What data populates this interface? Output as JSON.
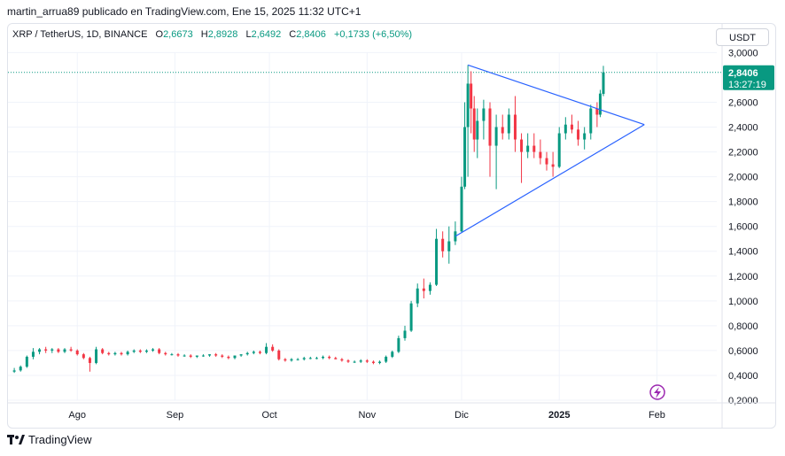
{
  "header": {
    "published_text": "martin_arrua89 publicado en TradingView.com, Ene 15, 2025 11:32 UTC+1"
  },
  "legend": {
    "symbol": "XRP / TetherUS, 1D, BINANCE",
    "o_label": "O",
    "o_value": "2,6673",
    "h_label": "H",
    "h_value": "2,8928",
    "l_label": "L",
    "l_value": "2,6492",
    "c_label": "C",
    "c_value": "2,8406",
    "change": "+0,1733 (+6,50%)"
  },
  "currency_button": "USDT",
  "price_label": {
    "price": "2,8406",
    "countdown": "13:27:19"
  },
  "footer": {
    "brand": "TradingView"
  },
  "colors": {
    "up": "#089981",
    "down": "#f23645",
    "pattern": "#2962ff",
    "grid": "#f0f3fa",
    "lightning": "#9c27b0"
  },
  "chart_data": {
    "type": "candlestick",
    "symbol": "XRP / TetherUS",
    "interval": "1D",
    "exchange": "BINANCE",
    "y_ticks": [
      "0,2000",
      "0,4000",
      "0,6000",
      "0,8000",
      "1,0000",
      "1,2000",
      "1,4000",
      "1,6000",
      "1,8000",
      "2,0000",
      "2,2000",
      "2,4000",
      "2,6000",
      "3,0000"
    ],
    "x_ticks": [
      "Ago",
      "Sep",
      "Oct",
      "Nov",
      "Dic",
      "2025",
      "Feb"
    ],
    "ylim": [
      0.2,
      3.0
    ],
    "xlim": [
      "2024-07-10",
      "2025-02-20"
    ],
    "last_price": 2.8406,
    "candles": [
      {
        "date": "2024-07-12",
        "o": 0.43,
        "h": 0.46,
        "l": 0.42,
        "c": 0.44
      },
      {
        "date": "2024-07-14",
        "o": 0.44,
        "h": 0.48,
        "l": 0.43,
        "c": 0.47
      },
      {
        "date": "2024-07-16",
        "o": 0.47,
        "h": 0.56,
        "l": 0.46,
        "c": 0.55
      },
      {
        "date": "2024-07-18",
        "o": 0.55,
        "h": 0.62,
        "l": 0.53,
        "c": 0.59
      },
      {
        "date": "2024-07-20",
        "o": 0.59,
        "h": 0.62,
        "l": 0.57,
        "c": 0.61
      },
      {
        "date": "2024-07-22",
        "o": 0.61,
        "h": 0.63,
        "l": 0.58,
        "c": 0.6
      },
      {
        "date": "2024-07-24",
        "o": 0.6,
        "h": 0.62,
        "l": 0.58,
        "c": 0.61
      },
      {
        "date": "2024-07-26",
        "o": 0.61,
        "h": 0.62,
        "l": 0.58,
        "c": 0.59
      },
      {
        "date": "2024-07-28",
        "o": 0.59,
        "h": 0.62,
        "l": 0.58,
        "c": 0.61
      },
      {
        "date": "2024-07-30",
        "o": 0.61,
        "h": 0.63,
        "l": 0.59,
        "c": 0.6
      },
      {
        "date": "2024-08-01",
        "o": 0.6,
        "h": 0.61,
        "l": 0.56,
        "c": 0.57
      },
      {
        "date": "2024-08-03",
        "o": 0.57,
        "h": 0.58,
        "l": 0.53,
        "c": 0.54
      },
      {
        "date": "2024-08-05",
        "o": 0.54,
        "h": 0.55,
        "l": 0.43,
        "c": 0.5
      },
      {
        "date": "2024-08-07",
        "o": 0.5,
        "h": 0.63,
        "l": 0.49,
        "c": 0.61
      },
      {
        "date": "2024-08-09",
        "o": 0.61,
        "h": 0.62,
        "l": 0.57,
        "c": 0.58
      },
      {
        "date": "2024-08-11",
        "o": 0.58,
        "h": 0.59,
        "l": 0.56,
        "c": 0.57
      },
      {
        "date": "2024-08-13",
        "o": 0.57,
        "h": 0.59,
        "l": 0.56,
        "c": 0.58
      },
      {
        "date": "2024-08-15",
        "o": 0.58,
        "h": 0.59,
        "l": 0.56,
        "c": 0.57
      },
      {
        "date": "2024-08-17",
        "o": 0.57,
        "h": 0.6,
        "l": 0.56,
        "c": 0.59
      },
      {
        "date": "2024-08-19",
        "o": 0.59,
        "h": 0.61,
        "l": 0.58,
        "c": 0.6
      },
      {
        "date": "2024-08-21",
        "o": 0.6,
        "h": 0.61,
        "l": 0.58,
        "c": 0.59
      },
      {
        "date": "2024-08-23",
        "o": 0.59,
        "h": 0.61,
        "l": 0.58,
        "c": 0.6
      },
      {
        "date": "2024-08-25",
        "o": 0.6,
        "h": 0.62,
        "l": 0.59,
        "c": 0.61
      },
      {
        "date": "2024-08-27",
        "o": 0.61,
        "h": 0.62,
        "l": 0.57,
        "c": 0.58
      },
      {
        "date": "2024-08-29",
        "o": 0.58,
        "h": 0.59,
        "l": 0.56,
        "c": 0.57
      },
      {
        "date": "2024-08-31",
        "o": 0.57,
        "h": 0.58,
        "l": 0.56,
        "c": 0.57
      },
      {
        "date": "2024-09-02",
        "o": 0.57,
        "h": 0.58,
        "l": 0.55,
        "c": 0.56
      },
      {
        "date": "2024-09-04",
        "o": 0.56,
        "h": 0.57,
        "l": 0.55,
        "c": 0.56
      },
      {
        "date": "2024-09-06",
        "o": 0.56,
        "h": 0.57,
        "l": 0.54,
        "c": 0.55
      },
      {
        "date": "2024-09-08",
        "o": 0.55,
        "h": 0.56,
        "l": 0.54,
        "c": 0.56
      },
      {
        "date": "2024-09-10",
        "o": 0.56,
        "h": 0.57,
        "l": 0.55,
        "c": 0.56
      },
      {
        "date": "2024-09-12",
        "o": 0.56,
        "h": 0.57,
        "l": 0.55,
        "c": 0.57
      },
      {
        "date": "2024-09-14",
        "o": 0.57,
        "h": 0.58,
        "l": 0.55,
        "c": 0.56
      },
      {
        "date": "2024-09-16",
        "o": 0.56,
        "h": 0.57,
        "l": 0.54,
        "c": 0.55
      },
      {
        "date": "2024-09-18",
        "o": 0.55,
        "h": 0.56,
        "l": 0.53,
        "c": 0.54
      },
      {
        "date": "2024-09-20",
        "o": 0.54,
        "h": 0.56,
        "l": 0.53,
        "c": 0.56
      },
      {
        "date": "2024-09-22",
        "o": 0.56,
        "h": 0.57,
        "l": 0.55,
        "c": 0.57
      },
      {
        "date": "2024-09-24",
        "o": 0.57,
        "h": 0.59,
        "l": 0.56,
        "c": 0.58
      },
      {
        "date": "2024-09-26",
        "o": 0.58,
        "h": 0.6,
        "l": 0.57,
        "c": 0.59
      },
      {
        "date": "2024-09-28",
        "o": 0.59,
        "h": 0.6,
        "l": 0.57,
        "c": 0.58
      },
      {
        "date": "2024-09-30",
        "o": 0.58,
        "h": 0.66,
        "l": 0.57,
        "c": 0.63
      },
      {
        "date": "2024-10-02",
        "o": 0.63,
        "h": 0.65,
        "l": 0.59,
        "c": 0.6
      },
      {
        "date": "2024-10-04",
        "o": 0.6,
        "h": 0.61,
        "l": 0.52,
        "c": 0.53
      },
      {
        "date": "2024-10-06",
        "o": 0.53,
        "h": 0.54,
        "l": 0.51,
        "c": 0.52
      },
      {
        "date": "2024-10-08",
        "o": 0.52,
        "h": 0.54,
        "l": 0.51,
        "c": 0.53
      },
      {
        "date": "2024-10-10",
        "o": 0.53,
        "h": 0.54,
        "l": 0.52,
        "c": 0.53
      },
      {
        "date": "2024-10-12",
        "o": 0.53,
        "h": 0.55,
        "l": 0.52,
        "c": 0.54
      },
      {
        "date": "2024-10-14",
        "o": 0.54,
        "h": 0.55,
        "l": 0.53,
        "c": 0.54
      },
      {
        "date": "2024-10-16",
        "o": 0.54,
        "h": 0.55,
        "l": 0.53,
        "c": 0.54
      },
      {
        "date": "2024-10-18",
        "o": 0.54,
        "h": 0.56,
        "l": 0.53,
        "c": 0.55
      },
      {
        "date": "2024-10-20",
        "o": 0.55,
        "h": 0.56,
        "l": 0.53,
        "c": 0.54
      },
      {
        "date": "2024-10-22",
        "o": 0.54,
        "h": 0.55,
        "l": 0.53,
        "c": 0.53
      },
      {
        "date": "2024-10-24",
        "o": 0.53,
        "h": 0.54,
        "l": 0.51,
        "c": 0.52
      },
      {
        "date": "2024-10-26",
        "o": 0.52,
        "h": 0.53,
        "l": 0.5,
        "c": 0.51
      },
      {
        "date": "2024-10-28",
        "o": 0.51,
        "h": 0.52,
        "l": 0.5,
        "c": 0.51
      },
      {
        "date": "2024-10-30",
        "o": 0.51,
        "h": 0.53,
        "l": 0.5,
        "c": 0.52
      },
      {
        "date": "2024-11-01",
        "o": 0.52,
        "h": 0.53,
        "l": 0.5,
        "c": 0.51
      },
      {
        "date": "2024-11-03",
        "o": 0.51,
        "h": 0.52,
        "l": 0.49,
        "c": 0.5
      },
      {
        "date": "2024-11-05",
        "o": 0.5,
        "h": 0.52,
        "l": 0.49,
        "c": 0.51
      },
      {
        "date": "2024-11-07",
        "o": 0.51,
        "h": 0.56,
        "l": 0.5,
        "c": 0.55
      },
      {
        "date": "2024-11-09",
        "o": 0.55,
        "h": 0.6,
        "l": 0.54,
        "c": 0.59
      },
      {
        "date": "2024-11-11",
        "o": 0.59,
        "h": 0.72,
        "l": 0.58,
        "c": 0.7
      },
      {
        "date": "2024-11-13",
        "o": 0.7,
        "h": 0.8,
        "l": 0.68,
        "c": 0.76
      },
      {
        "date": "2024-11-15",
        "o": 0.76,
        "h": 1.0,
        "l": 0.75,
        "c": 0.98
      },
      {
        "date": "2024-11-17",
        "o": 0.98,
        "h": 1.14,
        "l": 0.95,
        "c": 1.1
      },
      {
        "date": "2024-11-19",
        "o": 1.1,
        "h": 1.18,
        "l": 1.02,
        "c": 1.08
      },
      {
        "date": "2024-11-21",
        "o": 1.08,
        "h": 1.15,
        "l": 1.05,
        "c": 1.13
      },
      {
        "date": "2024-11-23",
        "o": 1.13,
        "h": 1.58,
        "l": 1.12,
        "c": 1.5
      },
      {
        "date": "2024-11-25",
        "o": 1.5,
        "h": 1.56,
        "l": 1.35,
        "c": 1.4
      },
      {
        "date": "2024-11-27",
        "o": 1.4,
        "h": 1.6,
        "l": 1.3,
        "c": 1.48
      },
      {
        "date": "2024-11-29",
        "o": 1.48,
        "h": 1.64,
        "l": 1.45,
        "c": 1.56
      },
      {
        "date": "2024-12-01",
        "o": 1.56,
        "h": 2.0,
        "l": 1.55,
        "c": 1.92
      },
      {
        "date": "2024-12-02",
        "o": 1.92,
        "h": 2.6,
        "l": 1.9,
        "c": 2.4
      },
      {
        "date": "2024-12-03",
        "o": 2.4,
        "h": 2.9,
        "l": 2.0,
        "c": 2.75
      },
      {
        "date": "2024-12-04",
        "o": 2.75,
        "h": 2.85,
        "l": 2.35,
        "c": 2.55
      },
      {
        "date": "2024-12-05",
        "o": 2.55,
        "h": 2.65,
        "l": 2.2,
        "c": 2.3
      },
      {
        "date": "2024-12-06",
        "o": 2.3,
        "h": 2.55,
        "l": 2.15,
        "c": 2.45
      },
      {
        "date": "2024-12-08",
        "o": 2.45,
        "h": 2.62,
        "l": 2.3,
        "c": 2.55
      },
      {
        "date": "2024-12-10",
        "o": 2.55,
        "h": 2.6,
        "l": 2.0,
        "c": 2.25
      },
      {
        "date": "2024-12-12",
        "o": 2.25,
        "h": 2.5,
        "l": 1.9,
        "c": 2.4
      },
      {
        "date": "2024-12-14",
        "o": 2.4,
        "h": 2.5,
        "l": 2.3,
        "c": 2.35
      },
      {
        "date": "2024-12-16",
        "o": 2.35,
        "h": 2.55,
        "l": 2.3,
        "c": 2.5
      },
      {
        "date": "2024-12-18",
        "o": 2.5,
        "h": 2.65,
        "l": 2.2,
        "c": 2.3
      },
      {
        "date": "2024-12-20",
        "o": 2.3,
        "h": 2.35,
        "l": 1.95,
        "c": 2.2
      },
      {
        "date": "2024-12-22",
        "o": 2.2,
        "h": 2.35,
        "l": 2.15,
        "c": 2.25
      },
      {
        "date": "2024-12-24",
        "o": 2.25,
        "h": 2.35,
        "l": 2.15,
        "c": 2.2
      },
      {
        "date": "2024-12-26",
        "o": 2.2,
        "h": 2.3,
        "l": 2.1,
        "c": 2.15
      },
      {
        "date": "2024-12-28",
        "o": 2.15,
        "h": 2.2,
        "l": 2.05,
        "c": 2.1
      },
      {
        "date": "2024-12-30",
        "o": 2.1,
        "h": 2.2,
        "l": 2.0,
        "c": 2.08
      },
      {
        "date": "2025-01-01",
        "o": 2.08,
        "h": 2.4,
        "l": 2.07,
        "c": 2.35
      },
      {
        "date": "2025-01-03",
        "o": 2.35,
        "h": 2.48,
        "l": 2.3,
        "c": 2.42
      },
      {
        "date": "2025-01-05",
        "o": 2.42,
        "h": 2.5,
        "l": 2.35,
        "c": 2.38
      },
      {
        "date": "2025-01-07",
        "o": 2.38,
        "h": 2.45,
        "l": 2.25,
        "c": 2.3
      },
      {
        "date": "2025-01-09",
        "o": 2.3,
        "h": 2.4,
        "l": 2.22,
        "c": 2.35
      },
      {
        "date": "2025-01-11",
        "o": 2.35,
        "h": 2.58,
        "l": 2.3,
        "c": 2.55
      },
      {
        "date": "2025-01-13",
        "o": 2.55,
        "h": 2.6,
        "l": 2.4,
        "c": 2.5
      },
      {
        "date": "2025-01-14",
        "o": 2.5,
        "h": 2.7,
        "l": 2.48,
        "c": 2.67
      },
      {
        "date": "2025-01-15",
        "o": 2.6673,
        "h": 2.8928,
        "l": 2.6492,
        "c": 2.8406
      }
    ],
    "trendlines": [
      {
        "from": {
          "date": "2024-12-03",
          "price": 2.9
        },
        "to": {
          "date": "2025-01-28",
          "price": 2.42
        }
      },
      {
        "from": {
          "date": "2024-11-29",
          "price": 1.52
        },
        "to": {
          "date": "2025-01-28",
          "price": 2.42
        }
      }
    ]
  }
}
